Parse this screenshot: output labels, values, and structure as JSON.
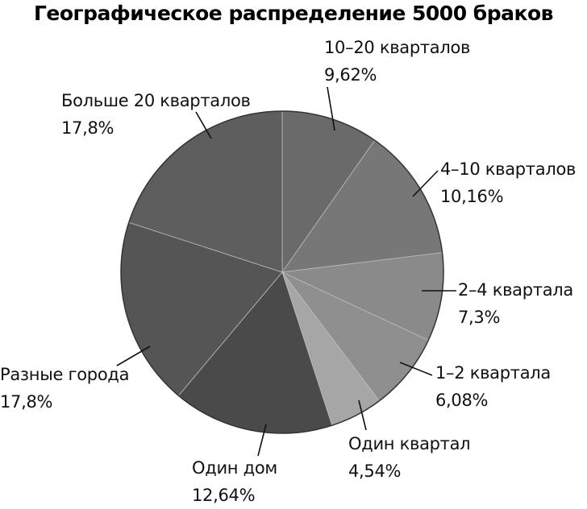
{
  "chart_data": {
    "type": "pie",
    "title": "Географическое распределение 5000 браков",
    "categories": [
      "10–20 кварталов",
      "4–10 кварталов",
      "2–4 квартала",
      "1–2 квартала",
      "Один квартал",
      "Один дом",
      "Разные города",
      "Больше 20 кварталов"
    ],
    "values": [
      9.62,
      10.16,
      7.3,
      6.08,
      4.54,
      12.64,
      17.8,
      17.8
    ],
    "value_labels": [
      "9,62%",
      "10,16%",
      "7,3%",
      "6,08%",
      "4,54%",
      "12,64%",
      "17,8%",
      "17,8%"
    ],
    "colors": [
      "#6a6a6a",
      "#777777",
      "#8a8a8a",
      "#8f8f8f",
      "#a6a6a6",
      "#4a4a4a",
      "#555555",
      "#5e5e5e"
    ],
    "legend": "none (callout labels)"
  },
  "title": "Географическое распределение 5000 браков",
  "labels": [
    {
      "name": "10–20 кварталов",
      "pct": "9,62%"
    },
    {
      "name": "4–10 кварталов",
      "pct": "10,16%"
    },
    {
      "name": "2–4 квартала",
      "pct": "7,3%"
    },
    {
      "name": "1–2 квартала",
      "pct": "6,08%"
    },
    {
      "name": "Один квартал",
      "pct": "4,54%"
    },
    {
      "name": "Один дом",
      "pct": "12,64%"
    },
    {
      "name": "Разные города",
      "pct": "17,8%"
    },
    {
      "name": "Больше 20 кварталов",
      "pct": "17,8%"
    }
  ]
}
